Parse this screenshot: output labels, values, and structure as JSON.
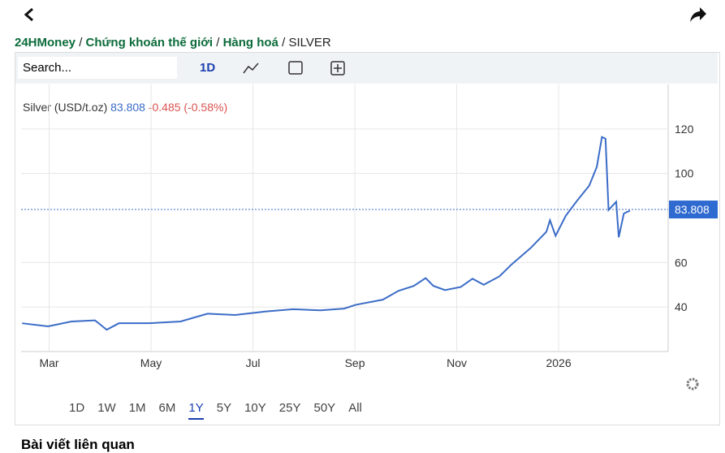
{
  "breadcrumb": [
    "24HMoney",
    "Chứng khoán thế giới",
    "Hàng hoá",
    "SILVER"
  ],
  "toolbar": {
    "search": "Search...",
    "interval": "1D"
  },
  "chart_data": {
    "type": "line",
    "legend": {
      "name": "Silver (USD/t.oz)",
      "price": 83.808,
      "change": "-0.485 (-0.58%)"
    },
    "x": [
      -0.53,
      -0.02,
      0.44,
      0.9,
      1.13,
      1.37,
      1.97,
      2.58,
      3.11,
      3.65,
      4.26,
      4.79,
      5.33,
      5.79,
      6.02,
      6.55,
      6.86,
      7.16,
      7.39,
      7.54,
      7.77,
      8.08,
      8.31,
      8.53,
      8.84,
      9.07,
      9.45,
      9.76,
      9.83,
      9.94,
      10.14,
      10.37,
      10.6,
      10.75,
      10.85,
      10.92,
      10.98,
      11.13,
      11.18,
      11.28,
      11.4
    ],
    "series": [
      {
        "name": "Silver",
        "color": "#3b6cc7",
        "values": [
          32.7,
          31.3,
          33.5,
          34,
          29.8,
          32.7,
          32.7,
          33.5,
          37,
          36.4,
          38,
          39,
          38.5,
          39.3,
          41,
          43.3,
          47.3,
          49.5,
          53,
          49.5,
          47.6,
          49,
          52.7,
          50,
          53.8,
          59,
          66.5,
          73.8,
          79,
          72,
          81,
          88,
          94.5,
          103,
          116.4,
          115.6,
          83.6,
          87.3,
          71.3,
          82,
          83.3
        ]
      }
    ],
    "xlim": [
      -0.55,
      12.15
    ],
    "ylim": [
      20,
      140
    ],
    "yticks": [
      40,
      60,
      100,
      120
    ],
    "xticks": [
      {
        "value": 0,
        "label": "Mar"
      },
      {
        "value": 2,
        "label": "May"
      },
      {
        "value": 4,
        "label": "Jul"
      },
      {
        "value": 6,
        "label": "Sep"
      },
      {
        "value": 8,
        "label": "Nov"
      },
      {
        "value": 10,
        "label": "2026"
      }
    ],
    "grid": true
  },
  "ranges": {
    "items": [
      "1D",
      "1W",
      "1M",
      "6M",
      "1Y",
      "5Y",
      "10Y",
      "25Y",
      "50Y",
      "All"
    ],
    "active": 4
  },
  "related": "Bài viết liên quan"
}
